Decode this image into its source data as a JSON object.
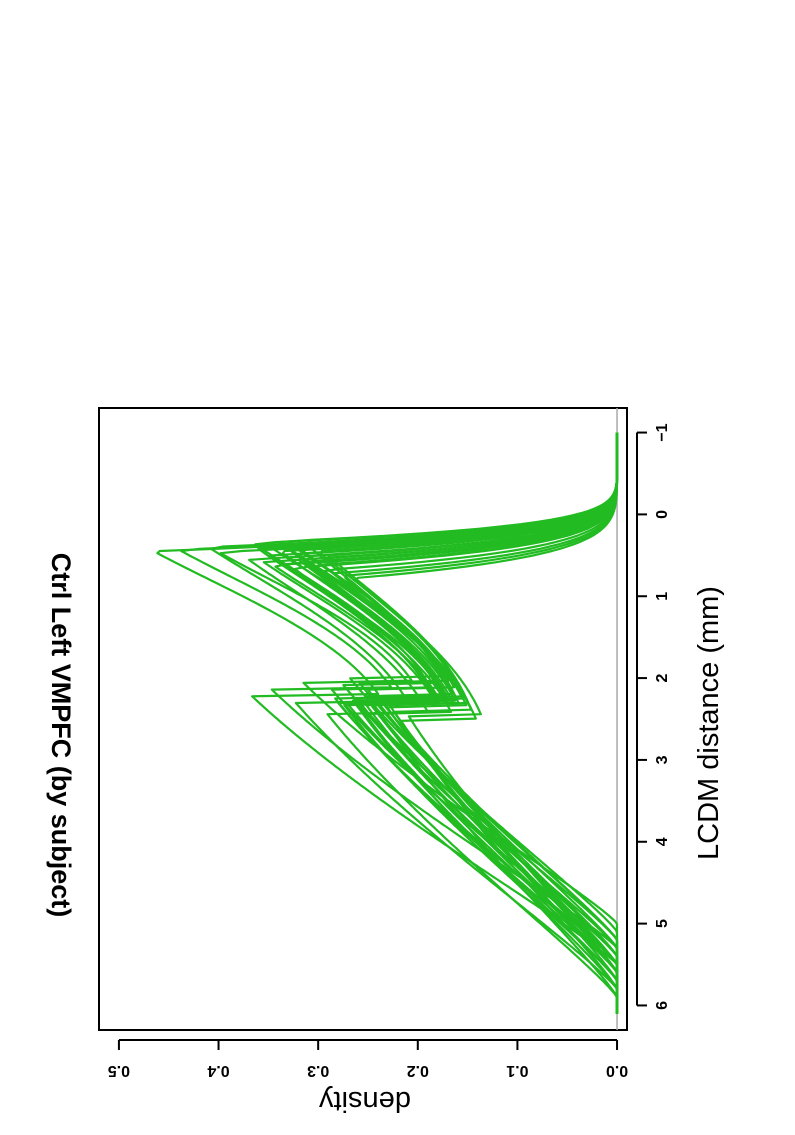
{
  "chart_data": {
    "type": "line",
    "title": "Ctrl Left VMPFC (by subject)",
    "xlabel": "LCDM distance (mm)",
    "ylabel": "density",
    "xlim": [
      -1.3,
      6.3
    ],
    "ylim": [
      -0.01,
      0.52
    ],
    "x_ticks": [
      "-1",
      "0",
      "1",
      "2",
      "3",
      "4",
      "5",
      "6"
    ],
    "y_ticks": [
      "0.0",
      "0.1",
      "0.2",
      "0.3",
      "0.4",
      "0.5"
    ],
    "orientation": "rotated 90 degrees clockwise (x axis runs top to bottom, y axis runs right to left)",
    "grid": false,
    "legend": "none",
    "line_color": "#22bb22",
    "baseline_color": "#aaaaaa",
    "series_count": 30,
    "series": [
      {
        "peak_x": 0.45,
        "peak_y": 0.465,
        "tail": 5.5
      },
      {
        "peak_x": 0.43,
        "peak_y": 0.44,
        "tail": 5.3
      },
      {
        "peak_x": 0.4,
        "peak_y": 0.41,
        "tail": 5.8
      },
      {
        "peak_x": 0.46,
        "peak_y": 0.4,
        "tail": 5.0
      },
      {
        "peak_x": 0.55,
        "peak_y": 0.37,
        "tail": 5.9
      },
      {
        "peak_x": 0.35,
        "peak_y": 0.365,
        "tail": 5.4
      },
      {
        "peak_x": 0.42,
        "peak_y": 0.36,
        "tail": 5.6
      },
      {
        "peak_x": 0.58,
        "peak_y": 0.355,
        "tail": 5.5
      },
      {
        "peak_x": 0.38,
        "peak_y": 0.35,
        "tail": 5.2
      },
      {
        "peak_x": 0.5,
        "peak_y": 0.348,
        "tail": 5.7
      },
      {
        "peak_x": 0.62,
        "peak_y": 0.345,
        "tail": 5.4
      },
      {
        "peak_x": 0.33,
        "peak_y": 0.34,
        "tail": 5.1
      },
      {
        "peak_x": 0.45,
        "peak_y": 0.338,
        "tail": 5.6
      },
      {
        "peak_x": 0.6,
        "peak_y": 0.335,
        "tail": 5.3
      },
      {
        "peak_x": 0.4,
        "peak_y": 0.332,
        "tail": 5.8
      },
      {
        "peak_x": 0.52,
        "peak_y": 0.33,
        "tail": 5.5
      },
      {
        "peak_x": 0.36,
        "peak_y": 0.328,
        "tail": 5.2
      },
      {
        "peak_x": 0.65,
        "peak_y": 0.325,
        "tail": 5.7
      },
      {
        "peak_x": 0.48,
        "peak_y": 0.322,
        "tail": 5.4
      },
      {
        "peak_x": 0.55,
        "peak_y": 0.32,
        "tail": 5.6
      },
      {
        "peak_x": 0.42,
        "peak_y": 0.318,
        "tail": 5.3
      },
      {
        "peak_x": 0.58,
        "peak_y": 0.315,
        "tail": 5.5
      },
      {
        "peak_x": 0.38,
        "peak_y": 0.31,
        "tail": 5.9
      },
      {
        "peak_x": 0.62,
        "peak_y": 0.305,
        "tail": 5.2
      },
      {
        "peak_x": 0.45,
        "peak_y": 0.3,
        "tail": 5.6
      },
      {
        "peak_x": 0.68,
        "peak_y": 0.295,
        "tail": 5.4
      },
      {
        "peak_x": 0.5,
        "peak_y": 0.29,
        "tail": 5.7
      },
      {
        "peak_x": 0.72,
        "peak_y": 0.285,
        "tail": 5.5
      },
      {
        "peak_x": 0.75,
        "peak_y": 0.275,
        "tail": 5.8
      },
      {
        "peak_x": 0.78,
        "peak_y": 0.265,
        "tail": 5.6
      }
    ]
  }
}
